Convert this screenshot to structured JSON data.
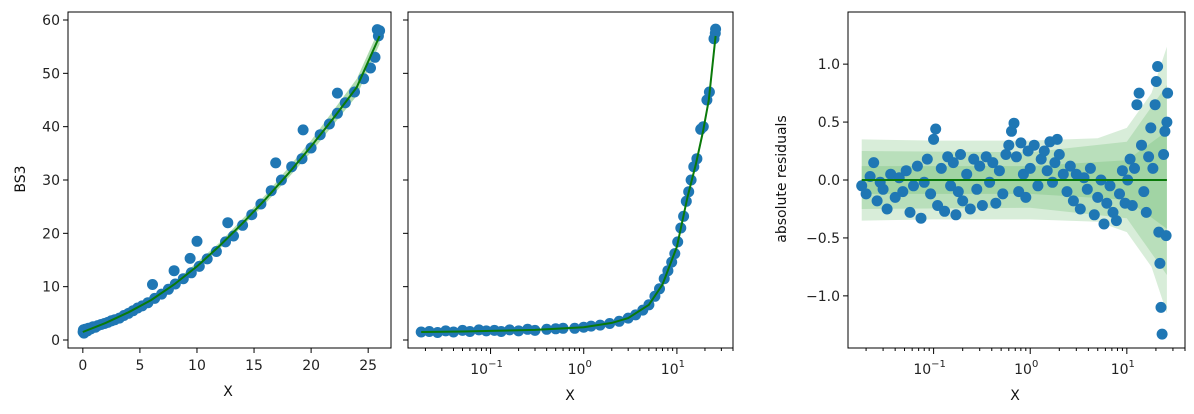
{
  "chart_data": [
    {
      "type": "scatter",
      "title": "",
      "xlabel": "X",
      "ylabel": "BS3",
      "xscale": "linear",
      "xlim": [
        -1.3,
        27.0
      ],
      "ylim": [
        -1.5,
        61.5
      ],
      "xticks": [
        0,
        5,
        10,
        15,
        20,
        25
      ],
      "yticks": [
        0,
        10,
        20,
        30,
        40,
        50,
        60
      ],
      "grid": false,
      "points": [
        [
          0.02,
          1.5
        ],
        [
          0.05,
          1.9
        ],
        [
          0.1,
          1.3
        ],
        [
          0.15,
          1.6
        ],
        [
          0.2,
          2.0
        ],
        [
          0.3,
          1.8
        ],
        [
          0.4,
          1.7
        ],
        [
          0.5,
          2.2
        ],
        [
          0.7,
          2.1
        ],
        [
          0.9,
          2.5
        ],
        [
          1.1,
          2.4
        ],
        [
          1.3,
          2.7
        ],
        [
          1.6,
          2.9
        ],
        [
          1.9,
          3.1
        ],
        [
          2.2,
          3.3
        ],
        [
          2.5,
          3.6
        ],
        [
          2.8,
          3.8
        ],
        [
          3.2,
          4.1
        ],
        [
          3.6,
          4.6
        ],
        [
          4.0,
          5.0
        ],
        [
          4.4,
          5.5
        ],
        [
          4.8,
          6.0
        ],
        [
          5.2,
          6.4
        ],
        [
          5.7,
          7.0
        ],
        [
          6.3,
          7.8
        ],
        [
          6.9,
          8.6
        ],
        [
          7.5,
          9.5
        ],
        [
          8.1,
          10.5
        ],
        [
          8.8,
          11.5
        ],
        [
          9.5,
          12.6
        ],
        [
          10.2,
          13.8
        ],
        [
          10.9,
          15.2
        ],
        [
          11.7,
          16.6
        ],
        [
          12.5,
          18.4
        ],
        [
          13.2,
          19.5
        ],
        [
          14.0,
          21.5
        ],
        [
          14.8,
          23.5
        ],
        [
          15.6,
          25.5
        ],
        [
          16.5,
          28.0
        ],
        [
          17.4,
          30.0
        ],
        [
          18.3,
          32.5
        ],
        [
          19.2,
          34.0
        ],
        [
          20.0,
          36.0
        ],
        [
          20.8,
          38.5
        ],
        [
          21.6,
          40.5
        ],
        [
          22.3,
          42.5
        ],
        [
          23.0,
          44.5
        ],
        [
          23.8,
          46.5
        ],
        [
          24.6,
          49.0
        ],
        [
          25.2,
          51.0
        ],
        [
          25.6,
          53.0
        ],
        [
          25.9,
          57.0
        ],
        [
          26.0,
          58.0
        ],
        [
          10.0,
          18.5
        ],
        [
          12.7,
          22.0
        ],
        [
          16.9,
          33.2
        ],
        [
          19.3,
          39.4
        ],
        [
          22.3,
          46.3
        ],
        [
          25.8,
          58.2
        ],
        [
          8.0,
          13.0
        ],
        [
          6.1,
          10.4
        ],
        [
          9.4,
          15.3
        ]
      ],
      "fit": [
        [
          0,
          1.5
        ],
        [
          2,
          3.2
        ],
        [
          4,
          5.2
        ],
        [
          6,
          7.5
        ],
        [
          8,
          10.4
        ],
        [
          10,
          13.8
        ],
        [
          12,
          17.7
        ],
        [
          14,
          21.9
        ],
        [
          16,
          26.4
        ],
        [
          18,
          31.2
        ],
        [
          20,
          36.3
        ],
        [
          22,
          41.7
        ],
        [
          24,
          47.4
        ],
        [
          26,
          57.0
        ]
      ],
      "band": [
        [
          0,
          1.2,
          1.8
        ],
        [
          4,
          4.9,
          5.5
        ],
        [
          8,
          10.0,
          10.8
        ],
        [
          12,
          17.1,
          18.3
        ],
        [
          16,
          25.6,
          27.2
        ],
        [
          20,
          35.2,
          37.4
        ],
        [
          24,
          45.8,
          49.0
        ],
        [
          26,
          55.5,
          58.5
        ]
      ]
    },
    {
      "type": "scatter",
      "title": "",
      "xlabel": "X",
      "ylabel": "",
      "xscale": "log",
      "xlim": [
        0.013,
        40
      ],
      "ylim": [
        -1.5,
        61.5
      ],
      "xticks": [
        0.1,
        1,
        10
      ],
      "xticklabels": [
        "10−1",
        "100",
        "101"
      ],
      "yticks": [
        0,
        10,
        20,
        30,
        40,
        50,
        60
      ],
      "ytick_labels_visible": false,
      "grid": false,
      "points": [
        [
          0.018,
          1.5
        ],
        [
          0.022,
          1.6
        ],
        [
          0.027,
          1.4
        ],
        [
          0.033,
          1.7
        ],
        [
          0.04,
          1.5
        ],
        [
          0.05,
          1.8
        ],
        [
          0.06,
          1.6
        ],
        [
          0.075,
          1.9
        ],
        [
          0.09,
          1.7
        ],
        [
          0.11,
          1.8
        ],
        [
          0.13,
          1.6
        ],
        [
          0.16,
          1.9
        ],
        [
          0.2,
          1.7
        ],
        [
          0.25,
          2.0
        ],
        [
          0.3,
          1.8
        ],
        [
          0.4,
          2.0
        ],
        [
          0.5,
          2.1
        ],
        [
          0.6,
          2.2
        ],
        [
          0.8,
          2.2
        ],
        [
          1.0,
          2.4
        ],
        [
          1.2,
          2.6
        ],
        [
          1.5,
          2.8
        ],
        [
          1.9,
          3.1
        ],
        [
          2.4,
          3.5
        ],
        [
          3.0,
          4.1
        ],
        [
          3.6,
          4.7
        ],
        [
          4.3,
          5.6
        ],
        [
          5.0,
          6.6
        ],
        [
          5.8,
          8.2
        ],
        [
          6.5,
          9.6
        ],
        [
          7.3,
          11.5
        ],
        [
          8.0,
          13.0
        ],
        [
          8.8,
          14.6
        ],
        [
          9.5,
          16.2
        ],
        [
          10.2,
          18.4
        ],
        [
          11.0,
          21.0
        ],
        [
          11.8,
          23.2
        ],
        [
          12.6,
          26.0
        ],
        [
          13.4,
          27.8
        ],
        [
          14.2,
          30.0
        ],
        [
          15.2,
          32.5
        ],
        [
          16.4,
          34.0
        ],
        [
          18.0,
          39.5
        ],
        [
          19.2,
          40.0
        ],
        [
          21.0,
          45.0
        ],
        [
          22.3,
          46.5
        ],
        [
          25.0,
          56.5
        ],
        [
          25.8,
          57.5
        ],
        [
          26.0,
          58.3
        ]
      ],
      "fit": [
        [
          0.018,
          1.5
        ],
        [
          0.05,
          1.6
        ],
        [
          0.1,
          1.7
        ],
        [
          0.3,
          1.9
        ],
        [
          1.0,
          2.4
        ],
        [
          2.0,
          3.2
        ],
        [
          3.0,
          4.1
        ],
        [
          5.0,
          6.6
        ],
        [
          7.0,
          10.4
        ],
        [
          10.0,
          17.5
        ],
        [
          13.0,
          26.8
        ],
        [
          16.0,
          33.0
        ],
        [
          19.0,
          39.0
        ],
        [
          22.0,
          45.0
        ],
        [
          26.0,
          57.0
        ]
      ]
    },
    {
      "type": "scatter",
      "title": "",
      "xlabel": "X",
      "ylabel": "absolute residuals",
      "xscale": "log",
      "xlim": [
        0.013,
        40
      ],
      "ylim": [
        -1.45,
        1.45
      ],
      "xticks": [
        0.1,
        1,
        10
      ],
      "xticklabels": [
        "10−1",
        "100",
        "101"
      ],
      "yticks": [
        -1.0,
        -0.5,
        0.0,
        0.5,
        1.0
      ],
      "yticklabels": [
        "−1.0",
        "−0.5",
        "0.0",
        "0.5",
        "1.0"
      ],
      "grid": false,
      "points": [
        [
          0.018,
          -0.05
        ],
        [
          0.02,
          -0.12
        ],
        [
          0.022,
          0.03
        ],
        [
          0.024,
          0.15
        ],
        [
          0.026,
          -0.18
        ],
        [
          0.028,
          -0.02
        ],
        [
          0.03,
          -0.08
        ],
        [
          0.033,
          -0.25
        ],
        [
          0.036,
          0.05
        ],
        [
          0.04,
          -0.15
        ],
        [
          0.044,
          0.02
        ],
        [
          0.048,
          -0.1
        ],
        [
          0.052,
          0.08
        ],
        [
          0.057,
          -0.28
        ],
        [
          0.062,
          -0.05
        ],
        [
          0.068,
          0.12
        ],
        [
          0.074,
          -0.33
        ],
        [
          0.08,
          -0.02
        ],
        [
          0.086,
          0.18
        ],
        [
          0.093,
          -0.12
        ],
        [
          0.1,
          0.35
        ],
        [
          0.105,
          0.44
        ],
        [
          0.11,
          -0.22
        ],
        [
          0.12,
          0.1
        ],
        [
          0.13,
          -0.27
        ],
        [
          0.14,
          0.2
        ],
        [
          0.15,
          -0.05
        ],
        [
          0.16,
          0.15
        ],
        [
          0.17,
          -0.3
        ],
        [
          0.18,
          -0.1
        ],
        [
          0.19,
          0.22
        ],
        [
          0.2,
          -0.18
        ],
        [
          0.22,
          0.05
        ],
        [
          0.24,
          -0.25
        ],
        [
          0.26,
          0.18
        ],
        [
          0.28,
          -0.08
        ],
        [
          0.3,
          0.12
        ],
        [
          0.32,
          -0.22
        ],
        [
          0.35,
          0.2
        ],
        [
          0.38,
          -0.02
        ],
        [
          0.41,
          0.15
        ],
        [
          0.44,
          -0.2
        ],
        [
          0.48,
          0.08
        ],
        [
          0.52,
          -0.12
        ],
        [
          0.56,
          0.22
        ],
        [
          0.6,
          0.3
        ],
        [
          0.64,
          0.42
        ],
        [
          0.68,
          0.49
        ],
        [
          0.72,
          0.2
        ],
        [
          0.76,
          -0.1
        ],
        [
          0.8,
          0.32
        ],
        [
          0.85,
          0.05
        ],
        [
          0.9,
          -0.15
        ],
        [
          0.95,
          0.25
        ],
        [
          1.0,
          0.1
        ],
        [
          1.1,
          0.3
        ],
        [
          1.2,
          -0.05
        ],
        [
          1.3,
          0.18
        ],
        [
          1.4,
          0.25
        ],
        [
          1.5,
          0.08
        ],
        [
          1.6,
          0.33
        ],
        [
          1.7,
          -0.02
        ],
        [
          1.8,
          0.15
        ],
        [
          1.9,
          0.35
        ],
        [
          2.0,
          0.22
        ],
        [
          2.2,
          0.05
        ],
        [
          2.4,
          -0.1
        ],
        [
          2.6,
          0.12
        ],
        [
          2.8,
          -0.18
        ],
        [
          3.0,
          0.05
        ],
        [
          3.3,
          -0.25
        ],
        [
          3.6,
          0.02
        ],
        [
          3.9,
          -0.08
        ],
        [
          4.2,
          0.1
        ],
        [
          4.6,
          -0.3
        ],
        [
          5.0,
          -0.15
        ],
        [
          5.4,
          0.0
        ],
        [
          5.8,
          -0.38
        ],
        [
          6.2,
          -0.2
        ],
        [
          6.7,
          -0.05
        ],
        [
          7.2,
          -0.28
        ],
        [
          7.8,
          -0.35
        ],
        [
          8.4,
          -0.12
        ],
        [
          9.0,
          0.08
        ],
        [
          9.6,
          -0.2
        ],
        [
          10.2,
          0.0
        ],
        [
          10.8,
          0.18
        ],
        [
          11.4,
          -0.22
        ],
        [
          12.0,
          0.1
        ],
        [
          12.7,
          0.65
        ],
        [
          13.4,
          0.75
        ],
        [
          14.2,
          0.3
        ],
        [
          15.0,
          -0.1
        ],
        [
          15.9,
          -0.28
        ],
        [
          16.8,
          0.2
        ],
        [
          17.7,
          0.45
        ],
        [
          18.6,
          0.1
        ],
        [
          19.6,
          0.65
        ],
        [
          20.2,
          0.85
        ],
        [
          20.8,
          0.98
        ],
        [
          21.4,
          -0.45
        ],
        [
          22.0,
          -0.72
        ],
        [
          22.6,
          -1.1
        ],
        [
          23.2,
          -1.33
        ],
        [
          24.0,
          0.22
        ],
        [
          24.8,
          0.42
        ],
        [
          25.5,
          -0.48
        ],
        [
          26.0,
          0.5
        ],
        [
          26.4,
          0.75
        ]
      ],
      "fit": [
        [
          0.018,
          0.0
        ],
        [
          26.0,
          0.0
        ]
      ],
      "bands": [
        {
          "lower": [
            [
              0.018,
              -0.35
            ],
            [
              0.1,
              -0.34
            ],
            [
              1.0,
              -0.34
            ],
            [
              5.0,
              -0.36
            ],
            [
              10.0,
              -0.45
            ],
            [
              18.0,
              -0.75
            ],
            [
              26.0,
              -1.15
            ]
          ],
          "upper": [
            [
              0.018,
              0.35
            ],
            [
              0.1,
              0.34
            ],
            [
              1.0,
              0.34
            ],
            [
              5.0,
              0.36
            ],
            [
              10.0,
              0.45
            ],
            [
              18.0,
              0.75
            ],
            [
              26.0,
              1.15
            ]
          ]
        },
        {
          "lower": [
            [
              0.018,
              -0.25
            ],
            [
              1.0,
              -0.24
            ],
            [
              10.0,
              -0.33
            ],
            [
              26.0,
              -0.82
            ]
          ],
          "upper": [
            [
              0.018,
              0.25
            ],
            [
              1.0,
              0.24
            ],
            [
              10.0,
              0.33
            ],
            [
              26.0,
              0.82
            ]
          ]
        },
        {
          "lower": [
            [
              0.018,
              -0.12
            ],
            [
              1.0,
              -0.12
            ],
            [
              10.0,
              -0.17
            ],
            [
              26.0,
              -0.42
            ]
          ],
          "upper": [
            [
              0.018,
              0.12
            ],
            [
              1.0,
              0.12
            ],
            [
              10.0,
              0.17
            ],
            [
              26.0,
              0.42
            ]
          ]
        }
      ]
    }
  ],
  "colors": {
    "points": "#1f77b4",
    "fit": "#0a7a0a",
    "band": "#4caf50"
  }
}
